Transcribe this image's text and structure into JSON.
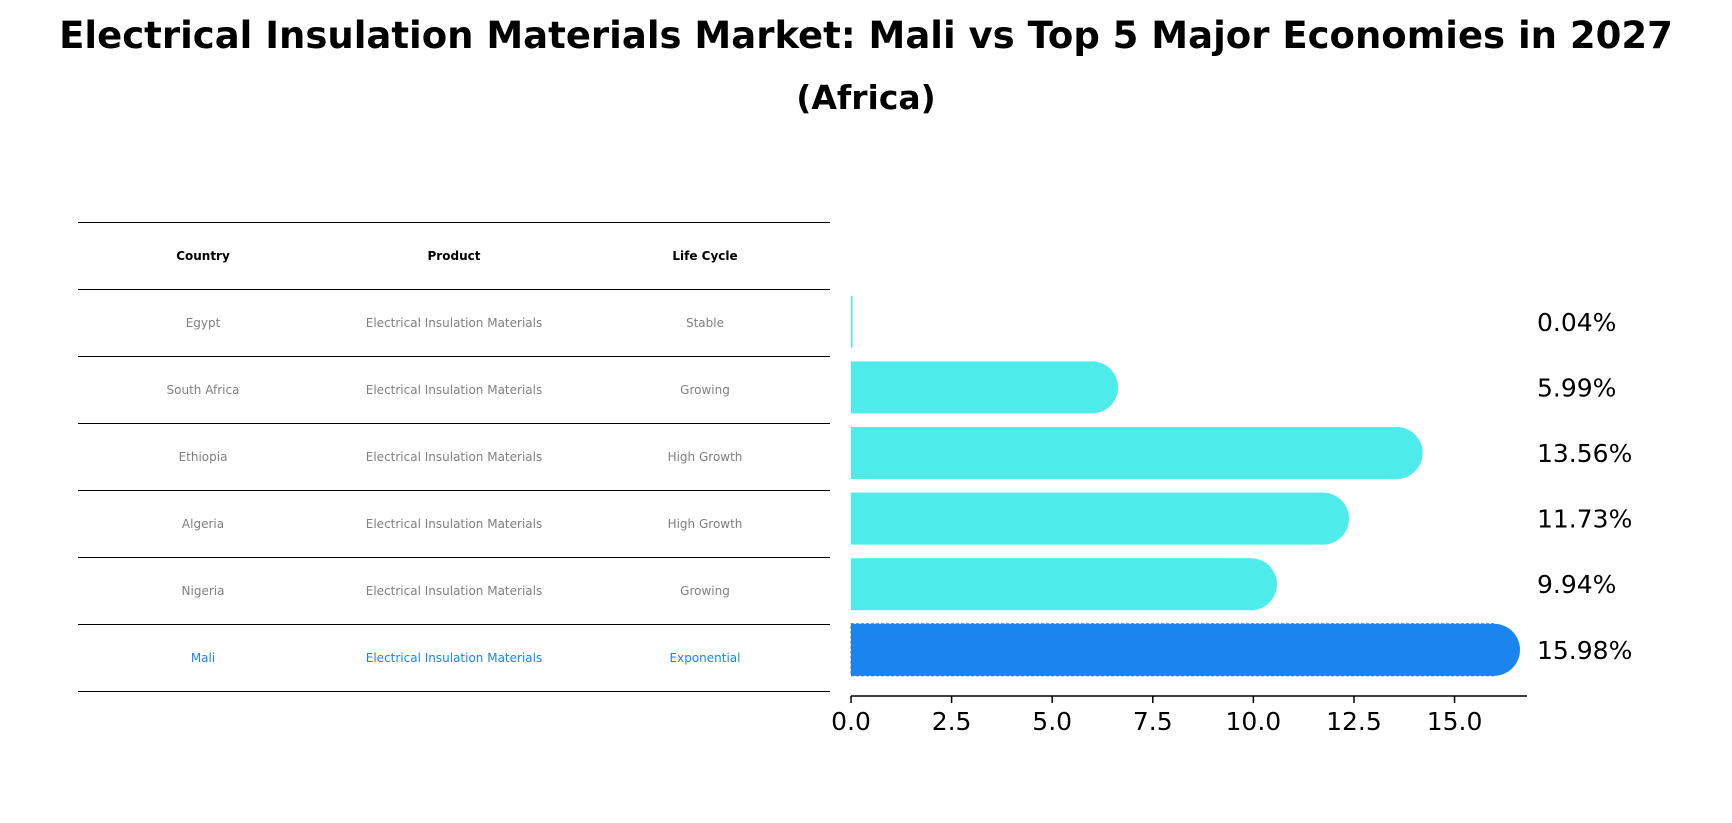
{
  "title": "Electrical Insulation Materials Market: Mali vs Top 5 Major Economies in 2027",
  "subtitle": "(Africa)",
  "table": {
    "headers": [
      "Country",
      "Product",
      "Life Cycle"
    ],
    "rows": [
      [
        "Egypt",
        "Electrical Insulation Materials",
        "Stable"
      ],
      [
        "South Africa",
        "Electrical Insulation Materials",
        "Growing"
      ],
      [
        "Ethiopia",
        "Electrical Insulation Materials",
        "High Growth"
      ],
      [
        "Algeria",
        "Electrical Insulation Materials",
        "High Growth"
      ],
      [
        "Nigeria",
        "Electrical Insulation Materials",
        "Growing"
      ],
      [
        "Mali",
        "Electrical Insulation Materials",
        "Exponential"
      ]
    ]
  },
  "chart_data": {
    "type": "bar",
    "orientation": "horizontal",
    "categories": [
      "Egypt",
      "South Africa",
      "Ethiopia",
      "Algeria",
      "Nigeria",
      "Mali"
    ],
    "values": [
      0.04,
      5.99,
      13.56,
      11.73,
      9.94,
      15.98
    ],
    "value_labels": [
      "0.04%",
      "5.99%",
      "13.56%",
      "11.73%",
      "9.94%",
      "15.98%"
    ],
    "xlim": [
      0,
      16.8
    ],
    "xticks": [
      "0.0",
      "2.5",
      "5.0",
      "7.5",
      "10.0",
      "12.5",
      "15.0"
    ],
    "xtick_values": [
      0,
      2.5,
      5,
      7.5,
      10,
      12.5,
      15
    ],
    "grid": false,
    "colors": {
      "default": "#4deceb",
      "highlight": "#1a85ef"
    },
    "highlight_category": "Mali"
  }
}
